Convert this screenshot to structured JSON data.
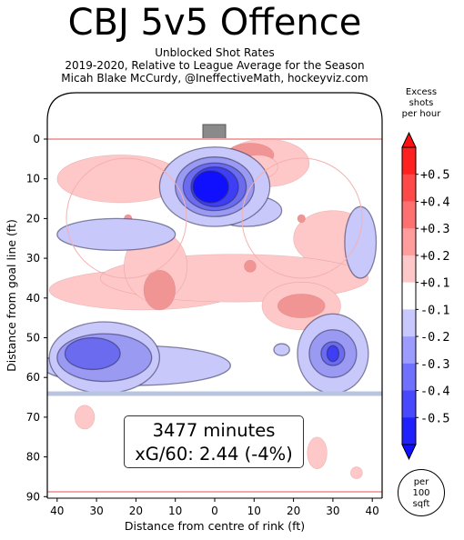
{
  "chart_data": {
    "type": "heatmap",
    "title": "CBJ 5v5 Offence",
    "subtitle_lines": [
      "Unblocked Shot Rates",
      "2019-2020, Relative to League Average for the Season",
      "Micah Blake McCurdy, @IneffectiveMath, hockeyviz.com"
    ],
    "xlabel": "Distance from centre of rink (ft)",
    "ylabel": "Distance from goal line (ft)",
    "x_ticks": [
      "40",
      "30",
      "20",
      "10",
      "0",
      "10",
      "20",
      "30",
      "40"
    ],
    "y_ticks": [
      "0",
      "10",
      "20",
      "30",
      "40",
      "50",
      "60",
      "70",
      "80",
      "90"
    ],
    "xlim": [
      -42.5,
      42.5
    ],
    "ylim": [
      0,
      89
    ],
    "colorbar": {
      "label_lines": [
        "Excess",
        "shots",
        "per hour"
      ],
      "ticks": [
        "+0.5",
        "+0.4",
        "+0.3",
        "+0.2",
        "+0.1",
        "-0.1",
        "-0.2",
        "-0.3",
        "-0.4",
        "-0.5"
      ],
      "colors": [
        "#ff2020",
        "#ff4848",
        "#ff7070",
        "#ff9c9c",
        "#ffc8c8",
        "#ffffff",
        "#c8c8ff",
        "#9c9cff",
        "#7070ff",
        "#4848ff",
        "#2020ff"
      ],
      "units_lines": [
        "per",
        "100",
        "sqft"
      ]
    },
    "annotation": [
      "3477 minutes",
      "xG/60: 2.44 (-4%)"
    ],
    "levels": {
      "pos1": "#ffc8c8",
      "pos2": "#f19494",
      "pos3": "#de6e74",
      "neg1": "#c8c8fa",
      "neg2": "#9a9af3",
      "neg3": "#6b6bf0",
      "neg4": "#3e3ef4",
      "neg5": "#1010ff"
    },
    "regions": [
      {
        "level": "pos1",
        "x": -24,
        "y": 10,
        "rx": 16,
        "ry": 6
      },
      {
        "level": "pos1",
        "x": 13,
        "y": 6,
        "rx": 11,
        "ry": 6
      },
      {
        "level": "pos2",
        "x": 9,
        "y": 4,
        "rx": 6,
        "ry": 3
      },
      {
        "level": "pos1",
        "x": 11,
        "y": 7,
        "rx": 5,
        "ry": 3
      },
      {
        "level": "pos1",
        "x": 30,
        "y": 25,
        "rx": 10,
        "ry": 7
      },
      {
        "level": "pos1",
        "x": -18,
        "y": 38,
        "rx": 24,
        "ry": 5
      },
      {
        "level": "pos1",
        "x": 5,
        "y": 35,
        "rx": 34,
        "ry": 6
      },
      {
        "level": "pos1",
        "x": -15,
        "y": 32,
        "rx": 8,
        "ry": 9
      },
      {
        "level": "pos2",
        "x": -14,
        "y": 38,
        "rx": 4,
        "ry": 5
      },
      {
        "level": "pos1",
        "x": 22,
        "y": 42,
        "rx": 10,
        "ry": 6
      },
      {
        "level": "pos2",
        "x": 22,
        "y": 42,
        "rx": 6,
        "ry": 3
      },
      {
        "level": "pos2",
        "x": 9,
        "y": 32,
        "rx": 1.5,
        "ry": 1.5
      },
      {
        "level": "pos2",
        "x": -22,
        "y": 20,
        "rx": 1,
        "ry": 1
      },
      {
        "level": "pos2",
        "x": 22,
        "y": 20,
        "rx": 1,
        "ry": 1
      },
      {
        "level": "pos1",
        "x": -33,
        "y": 70,
        "rx": 2.5,
        "ry": 3
      },
      {
        "level": "pos1",
        "x": 26,
        "y": 79,
        "rx": 2.5,
        "ry": 4
      },
      {
        "level": "pos1",
        "x": 36,
        "y": 84,
        "rx": 1.5,
        "ry": 1.5
      },
      {
        "level": "neg1",
        "x": -25,
        "y": 24,
        "rx": 15,
        "ry": 4
      },
      {
        "level": "neg1",
        "x": 37,
        "y": 26,
        "rx": 4,
        "ry": 9
      },
      {
        "level": "neg1",
        "x": 8,
        "y": 18,
        "rx": 9,
        "ry": 4
      },
      {
        "level": "neg1",
        "x": 0,
        "y": 12,
        "rx": 14,
        "ry": 10
      },
      {
        "level": "neg2",
        "x": 0,
        "y": 12,
        "rx": 10,
        "ry": 7.5
      },
      {
        "level": "neg3",
        "x": 0,
        "y": 12,
        "rx": 8,
        "ry": 6
      },
      {
        "level": "neg4",
        "x": 0,
        "y": 12,
        "rx": 6,
        "ry": 5
      },
      {
        "level": "neg5",
        "x": -1,
        "y": 12,
        "rx": 4.5,
        "ry": 4
      },
      {
        "level": "neg1",
        "x": -20,
        "y": 57,
        "rx": 24,
        "ry": 5
      },
      {
        "level": "neg1",
        "x": -28,
        "y": 55,
        "rx": 14,
        "ry": 9
      },
      {
        "level": "neg2",
        "x": -28,
        "y": 55,
        "rx": 12,
        "ry": 6
      },
      {
        "level": "neg3",
        "x": -31,
        "y": 54,
        "rx": 7,
        "ry": 4
      },
      {
        "level": "neg1",
        "x": 30,
        "y": 54,
        "rx": 9,
        "ry": 10
      },
      {
        "level": "neg2",
        "x": 30,
        "y": 54,
        "rx": 6,
        "ry": 6
      },
      {
        "level": "neg3",
        "x": 30,
        "y": 54,
        "rx": 3,
        "ry": 3
      },
      {
        "level": "neg4",
        "x": 30,
        "y": 54,
        "rx": 1.5,
        "ry": 2
      },
      {
        "level": "neg1",
        "x": 17,
        "y": 53,
        "rx": 2,
        "ry": 1.5
      }
    ]
  }
}
